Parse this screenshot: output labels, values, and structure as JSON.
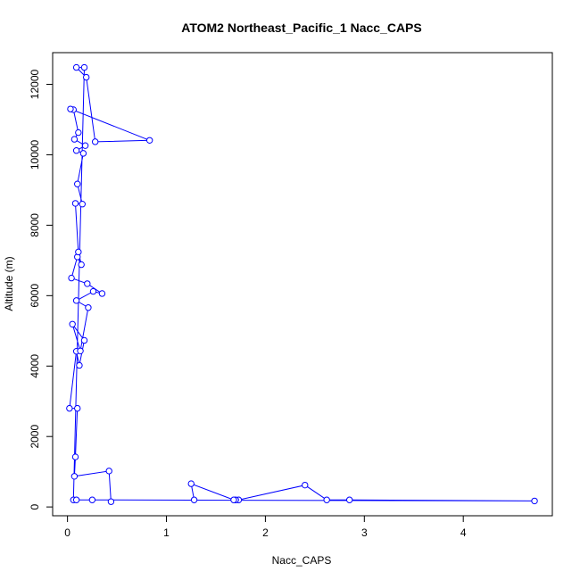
{
  "chart_data": {
    "type": "line",
    "title": "ATOM2 Northeast_Pacific_1 Nacc_CAPS",
    "xlabel": "Nacc_CAPS",
    "ylabel": "Altitude (m)",
    "xlim": [
      -0.15,
      4.9
    ],
    "ylim": [
      -250,
      12900
    ],
    "x_ticks": [
      0,
      1,
      2,
      3,
      4
    ],
    "y_ticks": [
      0,
      2000,
      4000,
      6000,
      8000,
      10000,
      12000
    ],
    "grid": false,
    "marker": "open-circle",
    "color": "#0000ff",
    "series": [
      {
        "x": [
          0.44,
          0.42,
          0.07,
          0.08,
          0.1,
          0.02,
          0.09,
          0.12,
          0.17,
          0.05,
          0.13,
          0.21,
          0.09,
          0.26,
          0.35,
          0.2,
          0.04,
          0.1,
          0.14,
          0.11,
          0.08,
          0.15,
          0.1,
          0.16,
          0.09,
          0.18,
          0.07,
          0.11,
          0.06,
          0.03,
          0.83,
          0.28,
          0.19,
          0.09,
          0.17,
          0.06,
          0.09,
          0.25,
          4.72,
          2.85,
          2.62,
          2.4,
          1.73,
          1.7,
          1.68,
          1.25,
          1.28
        ],
        "y": [
          150,
          1020,
          870,
          1420,
          2800,
          2800,
          4420,
          4020,
          4730,
          5190,
          4430,
          5660,
          5860,
          6120,
          6060,
          6340,
          6500,
          7100,
          6880,
          7240,
          8620,
          8600,
          9170,
          10040,
          10120,
          10260,
          10440,
          10630,
          11280,
          11300,
          10410,
          10370,
          12200,
          12480,
          12480,
          200,
          200,
          200,
          170,
          200,
          200,
          620,
          200,
          200,
          200,
          660,
          200
        ]
      }
    ]
  }
}
